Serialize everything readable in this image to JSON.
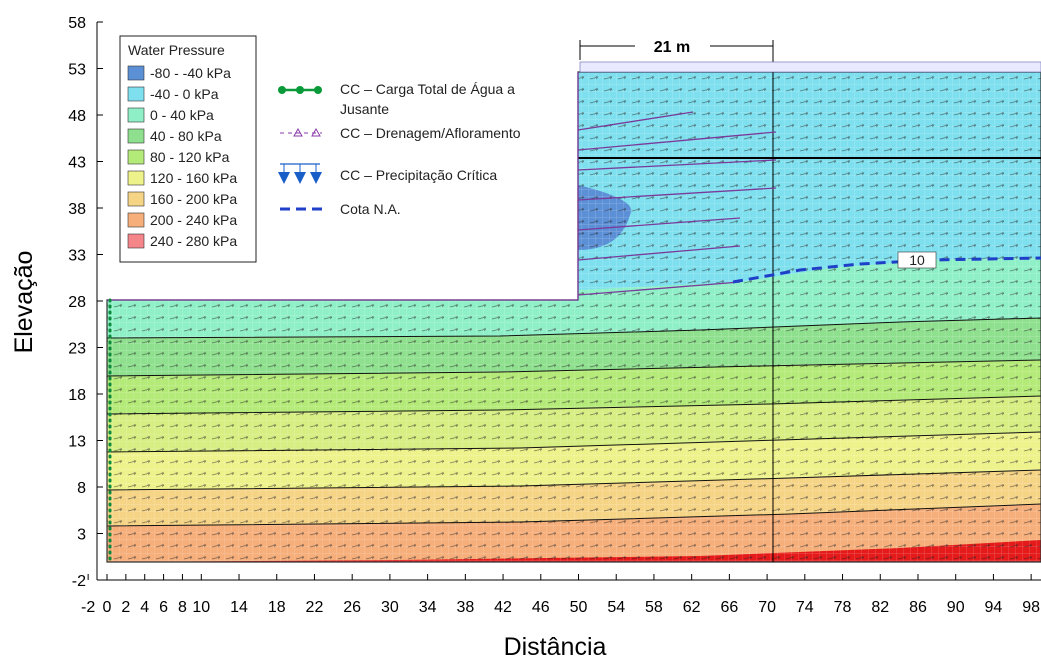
{
  "figure": {
    "x_axis_title": "Distância",
    "y_axis_title": "Elevação",
    "x_ticks": [
      "-2",
      "0",
      "2",
      "4",
      "6",
      "8",
      "10",
      "14",
      "18",
      "22",
      "26",
      "30",
      "34",
      "38",
      "42",
      "46",
      "50",
      "54",
      "58",
      "62",
      "66",
      "70",
      "74",
      "78",
      "82",
      "86",
      "90",
      "94",
      "98"
    ],
    "y_ticks": [
      "58",
      "53",
      "48",
      "43",
      "38",
      "33",
      "28",
      "23",
      "18",
      "13",
      "8",
      "3",
      "-2"
    ],
    "dimension_label": "21 m",
    "contour_label": "10"
  },
  "legend": {
    "title": "Water Pressure",
    "items": [
      {
        "label": "-80 - -40 kPa",
        "color": "#5b8fd6"
      },
      {
        "label": "-40 - 0 kPa",
        "color": "#7ee0ee"
      },
      {
        "label": "0 - 40 kPa",
        "color": "#8ff0c8"
      },
      {
        "label": "40 - 80 kPa",
        "color": "#8ee08e"
      },
      {
        "label": "80 - 120 kPa",
        "color": "#b4ea78"
      },
      {
        "label": "120 - 160 kPa",
        "color": "#eef28a"
      },
      {
        "label": "160 - 200 kPa",
        "color": "#f6d486"
      },
      {
        "label": "200 - 240 kPa",
        "color": "#f6ae7a"
      },
      {
        "label": "240 - 280 kPa",
        "color": "#f4868a"
      }
    ]
  },
  "boundary_legend": {
    "items": [
      {
        "symbol": "green-dot-line",
        "label_1": "CC – Carga Total de Água a",
        "label_2": "Jusante"
      },
      {
        "symbol": "purple-triangle-line",
        "label_1": "CC – Drenagem/Afloramento"
      },
      {
        "symbol": "blue-arrows",
        "label_1": "CC – Precipitação Crítica"
      },
      {
        "symbol": "blue-dashed-line",
        "label_1": "Cota N.A."
      }
    ]
  }
}
